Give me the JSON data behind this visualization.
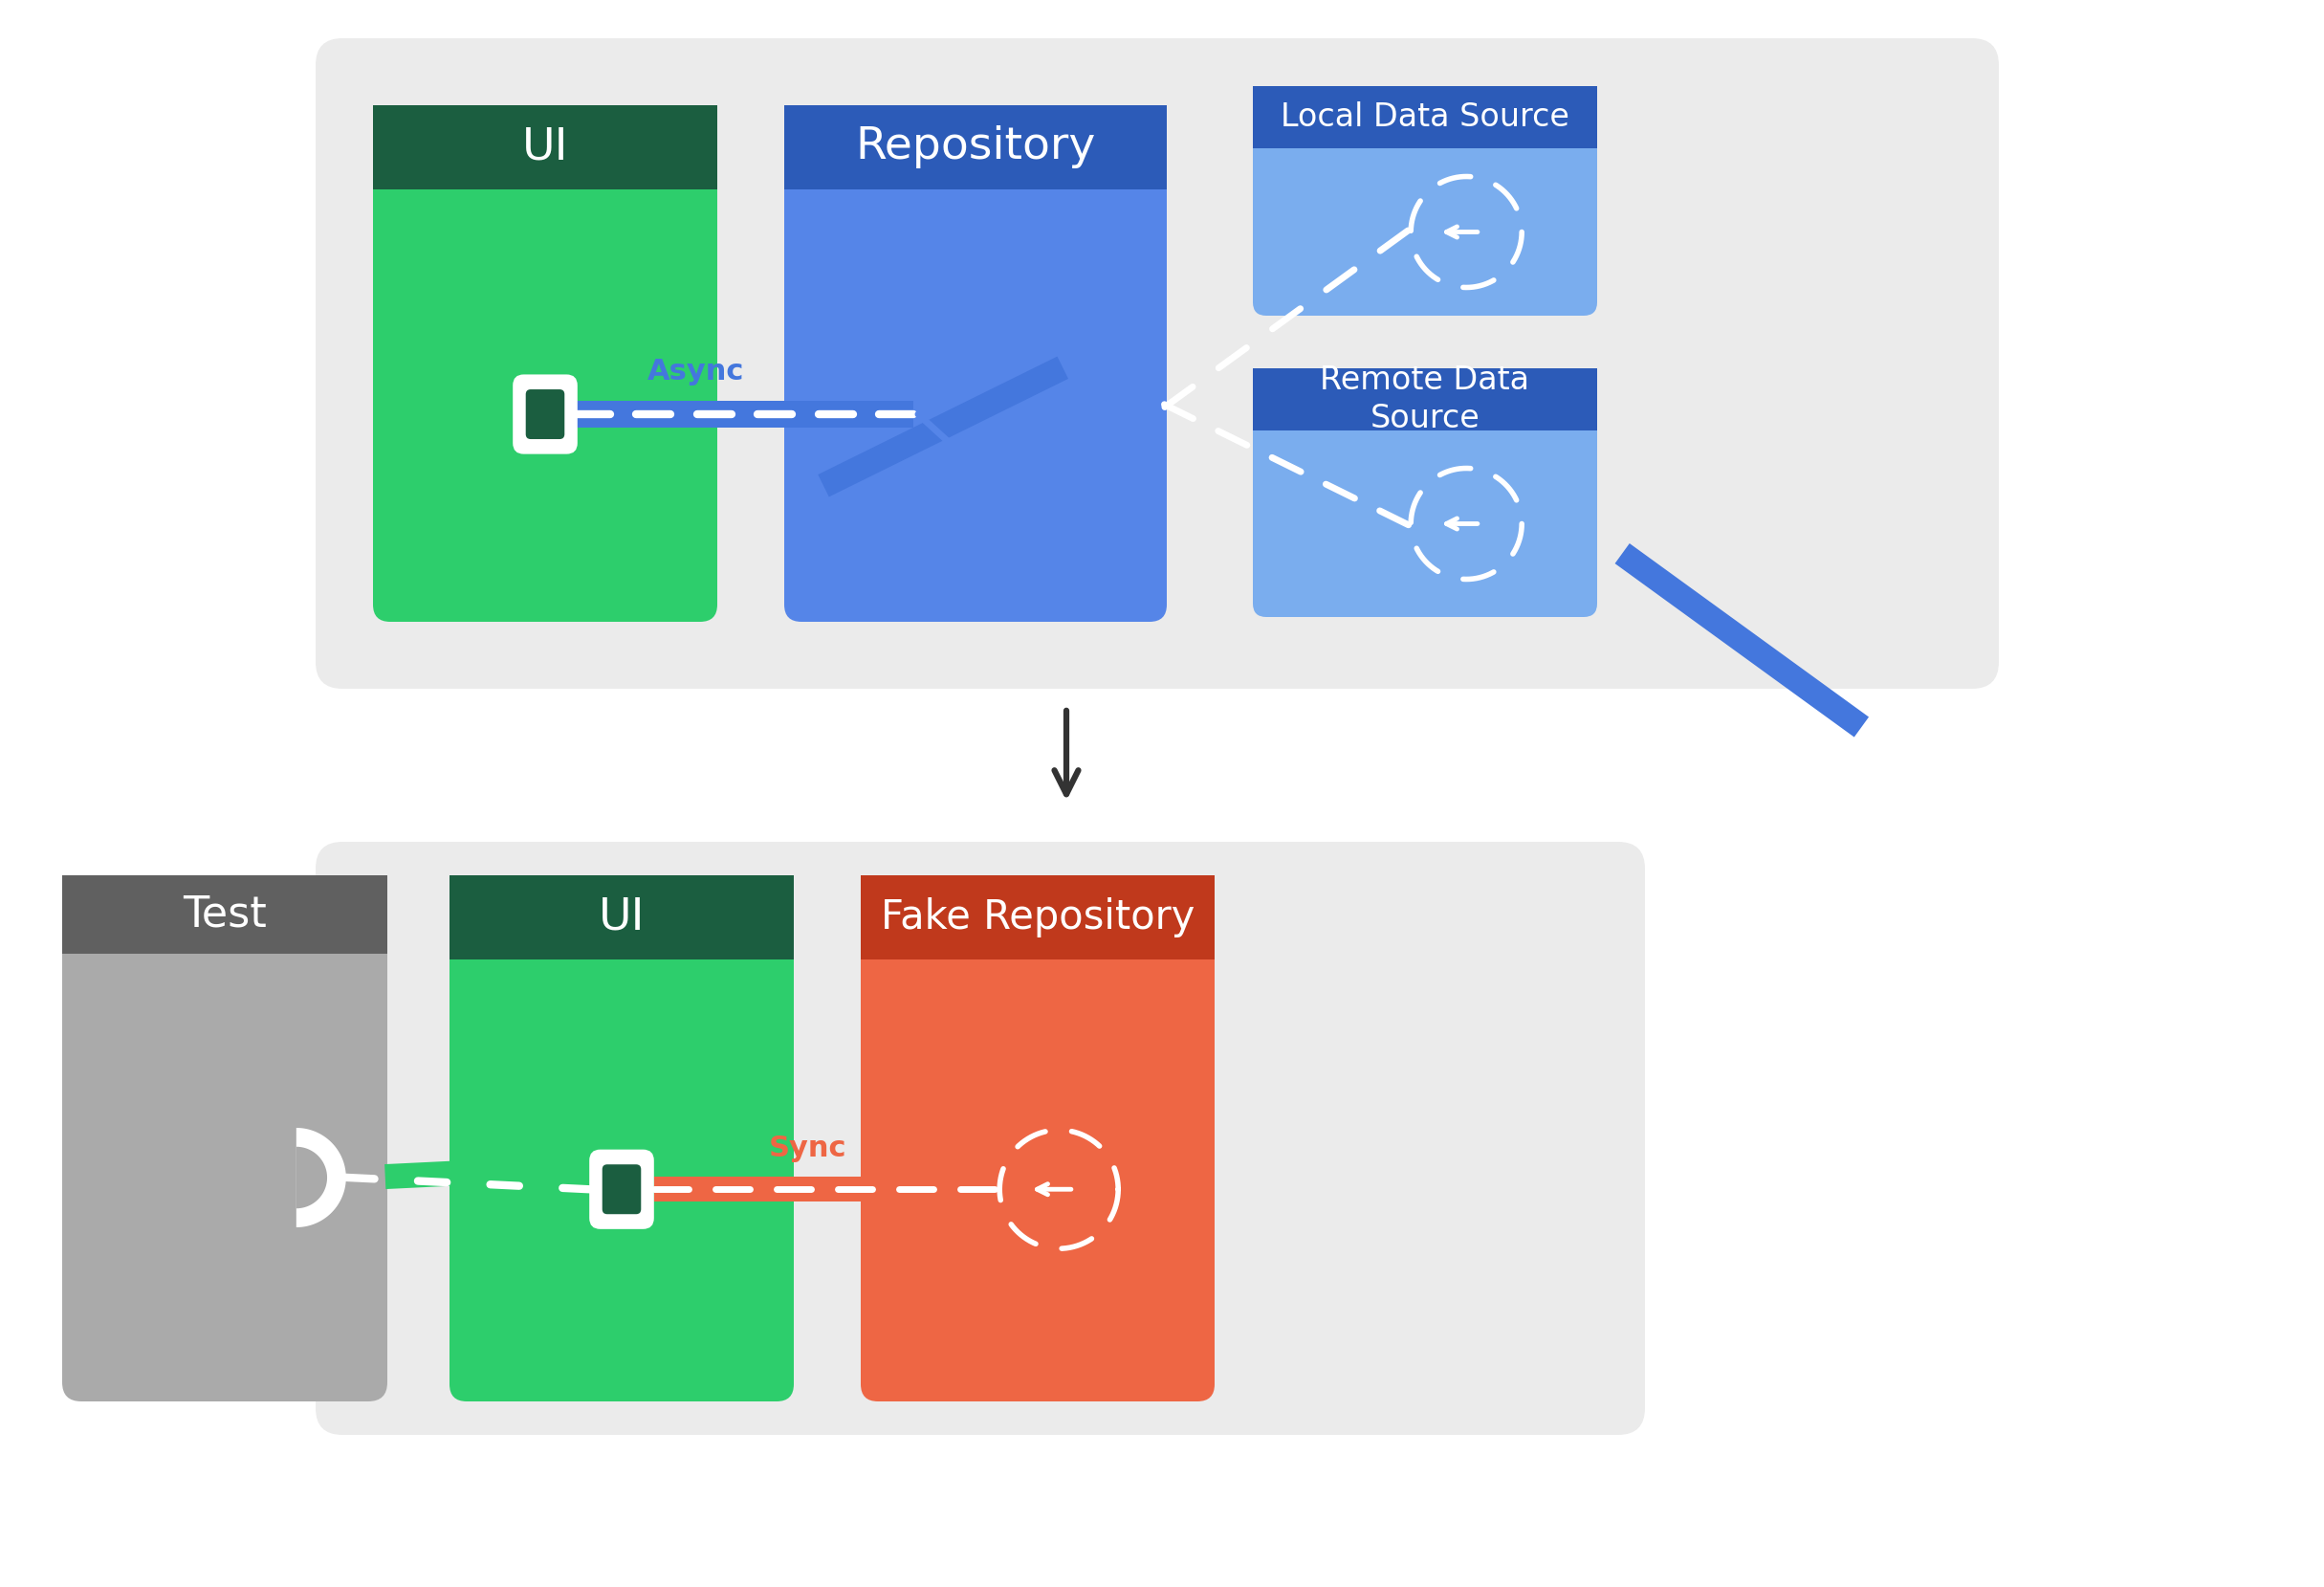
{
  "bg_color": "#ffffff",
  "panel_bg": "#ebebeb",
  "ui_header_color": "#1b5e40",
  "ui_body_color": "#2dce6c",
  "ui_label": "UI",
  "repo_header_color": "#2c5bb8",
  "repo_body_color": "#5585e8",
  "repo_label": "Repository",
  "lds_header_color": "#2c5bb8",
  "lds_body_color": "#7aadee",
  "lds_label": "Local Data Source",
  "rds_header_color": "#2c5bb8",
  "rds_body_color": "#7aadee",
  "rds_label": "Remote Data\nSource",
  "fake_repo_header_color": "#c0391c",
  "fake_repo_body_color": "#ee6644",
  "fake_repo_label": "Fake Repository",
  "test_header_color": "#606060",
  "test_body_color": "#aaaaaa",
  "test_label": "Test",
  "async_label": "Async",
  "async_color": "#4477dd",
  "sync_label": "Sync",
  "sync_color": "#ee6644",
  "white": "#ffffff",
  "arrow_color": "#333333"
}
